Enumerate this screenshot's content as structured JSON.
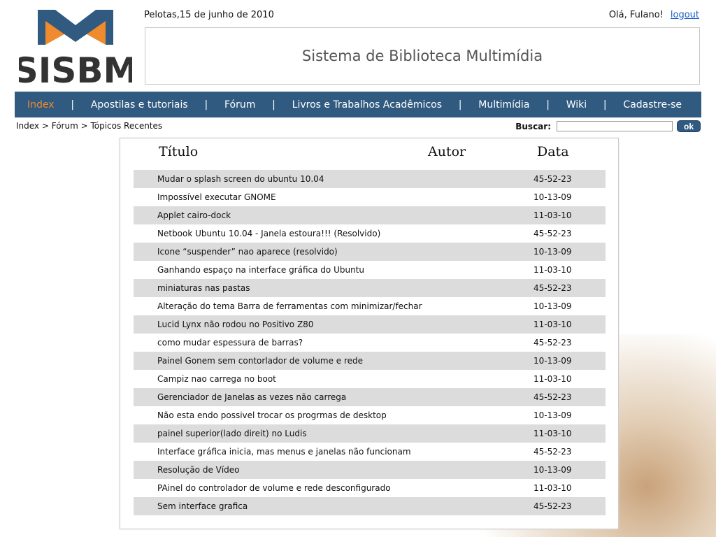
{
  "header": {
    "logo_text": "SISBM",
    "date": "Pelotas,15 de junho de 2010",
    "greeting": "Olá, Fulano!",
    "logout": "logout",
    "banner_title": "Sistema de Biblioteca Multimídia",
    "colors": {
      "nav": "#305a80",
      "active": "#f08a2e",
      "logo_orange": "#f08a2e",
      "logo_blue": "#305a80"
    }
  },
  "nav": {
    "items": [
      {
        "label": "Index"
      },
      {
        "label": "Apostilas e tutoriais"
      },
      {
        "label": "Fórum"
      },
      {
        "label": "Livros e Trabalhos Acadêmicos"
      },
      {
        "label": "Multimídia"
      },
      {
        "label": "Wiki"
      },
      {
        "label": "Cadastre-se"
      }
    ],
    "separator": "|"
  },
  "breadcrumb": "Index > Fórum > Tópicos Recentes",
  "search": {
    "label": "Buscar:",
    "value": "",
    "button": "ok"
  },
  "table": {
    "headers": [
      "Título",
      "Autor",
      "Data"
    ],
    "rows": [
      {
        "title": "Mudar o splash screen do ubuntu 10.04",
        "date": "45-52-23"
      },
      {
        "title": "Impossível executar GNOME",
        "date": "10-13-09"
      },
      {
        "title": "Applet cairo-dock",
        "date": "11-03-10"
      },
      {
        "title": "Netbook Ubuntu 10.04 - Janela estoura!!! (Resolvido)",
        "date": "45-52-23"
      },
      {
        "title": "Icone “suspender” nao aparece (resolvido)",
        "date": "10-13-09"
      },
      {
        "title": "Ganhando espaço na interface gráfica do Ubuntu",
        "date": "11-03-10"
      },
      {
        "title": "miniaturas nas pastas",
        "date": "45-52-23"
      },
      {
        "title": "Alteração do tema Barra de ferramentas com minimizar/fechar",
        "date": "10-13-09"
      },
      {
        "title": "Lucid Lynx não rodou no Positivo Z80",
        "date": "11-03-10"
      },
      {
        "title": "como mudar espessura de barras?",
        "date": "45-52-23"
      },
      {
        "title": "Painel Gonem sem contorlador de volume e rede",
        "date": "10-13-09"
      },
      {
        "title": "Campiz nao carrega no boot",
        "date": "11-03-10"
      },
      {
        "title": "Gerenciador de Janelas as vezes não carrega",
        "date": "45-52-23"
      },
      {
        "title": "Não esta endo possivel trocar os progrmas de desktop",
        "date": "10-13-09"
      },
      {
        "title": "painel superior(lado direit) no Ludis",
        "date": "11-03-10"
      },
      {
        "title": "Interface gráfica inicia, mas menus e janelas não funcionam",
        "date": "45-52-23"
      },
      {
        "title": "Resolução de Vídeo",
        "date": "10-13-09"
      },
      {
        "title": "PAinel do controlador de volume e rede desconfigurado",
        "date": "11-03-10"
      },
      {
        "title": "Sem interface grafica",
        "date": "45-52-23"
      }
    ]
  }
}
